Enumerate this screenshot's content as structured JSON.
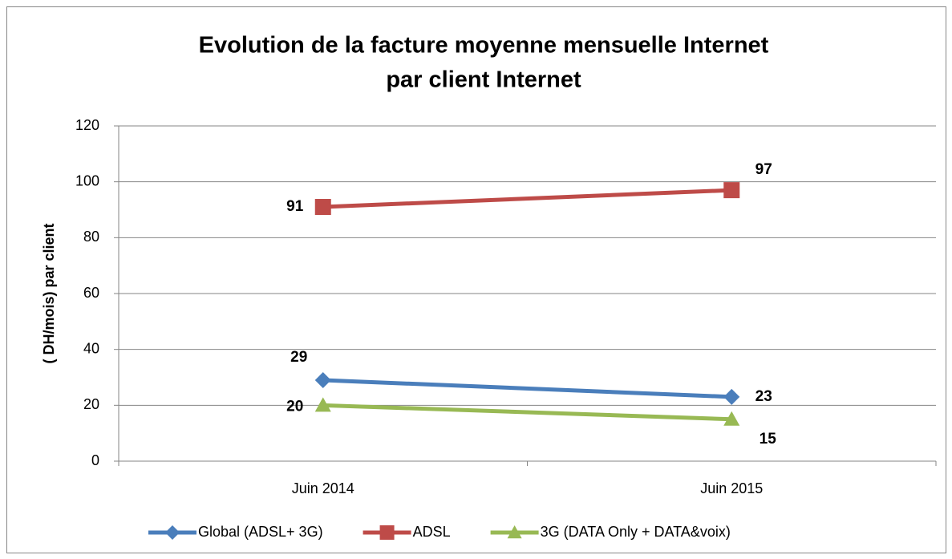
{
  "chart_data": {
    "type": "line",
    "title": [
      "Evolution de la facture moyenne mensuelle Internet",
      "par client Internet"
    ],
    "y_label": "( DH/mois) par client",
    "categories": [
      "Juin 2014",
      "Juin 2015"
    ],
    "series": [
      {
        "name": "Global (ADSL+ 3G)",
        "color": "#4a7ebb",
        "marker": "diamond",
        "values": [
          29,
          23
        ]
      },
      {
        "name": "ADSL",
        "color": "#be4b48",
        "marker": "square",
        "values": [
          91,
          97
        ]
      },
      {
        "name": "3G (DATA Only + DATA&voix)",
        "color": "#98b954",
        "marker": "triangle",
        "values": [
          20,
          15
        ]
      }
    ],
    "ylim": [
      0,
      120
    ],
    "yticks": [
      0,
      20,
      40,
      60,
      80,
      100,
      120
    ],
    "grid": true,
    "legend": "bottom"
  }
}
